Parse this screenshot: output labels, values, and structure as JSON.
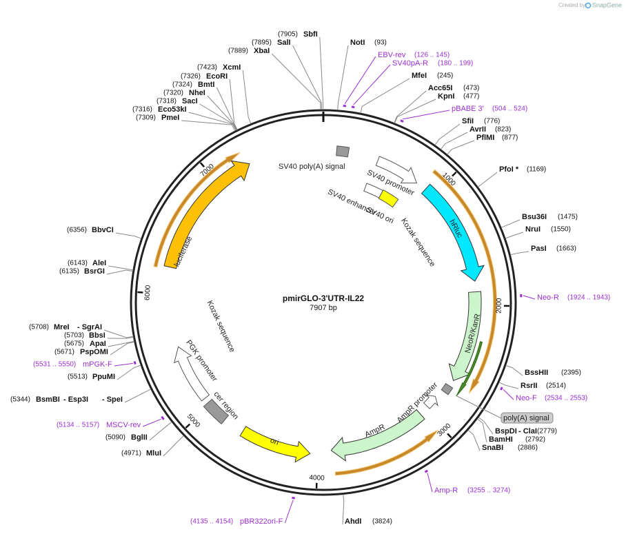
{
  "watermark": {
    "prefix": "Created by",
    "brand": "SnapGene"
  },
  "map": {
    "name": "pmirGLO-3'UTR-IL22",
    "length_label": "7907 bp",
    "length": 7907,
    "ticks": [
      1000,
      2000,
      3000,
      4000,
      5000,
      6000,
      7000
    ]
  },
  "sites": [
    {
      "names": [
        "SbfI"
      ],
      "position": {
        "value": 7905,
        "label": "(7905)"
      }
    },
    {
      "names": [
        "SalI"
      ],
      "position": {
        "value": 7895,
        "label": "(7895)"
      }
    },
    {
      "names": [
        "XbaI"
      ],
      "position": {
        "value": 7889,
        "label": "(7889)"
      }
    },
    {
      "names": [
        "XcmI"
      ],
      "position": {
        "value": 7423,
        "label": "(7423)"
      }
    },
    {
      "names": [
        "EcoRI"
      ],
      "position": {
        "value": 7326,
        "label": "(7326)"
      }
    },
    {
      "names": [
        "BmtI"
      ],
      "position": {
        "value": 7324,
        "label": "(7324)"
      }
    },
    {
      "names": [
        "NheI"
      ],
      "position": {
        "value": 7320,
        "label": "(7320)"
      }
    },
    {
      "names": [
        "SacI"
      ],
      "position": {
        "value": 7318,
        "label": "(7318)"
      }
    },
    {
      "names": [
        "Eco53kI"
      ],
      "position": {
        "value": 7316,
        "label": "(7316)"
      }
    },
    {
      "names": [
        "PmeI"
      ],
      "position": {
        "value": 7309,
        "label": "(7309)"
      }
    },
    {
      "names": [
        "NotI"
      ],
      "position": {
        "value": 93,
        "label": "(93)"
      }
    },
    {
      "names": [
        "MfeI"
      ],
      "position": {
        "value": 245,
        "label": "(245)"
      }
    },
    {
      "names": [
        "Acc65I"
      ],
      "position": {
        "value": 473,
        "label": "(473)"
      }
    },
    {
      "names": [
        "KpnI"
      ],
      "position": {
        "value": 477,
        "label": "(477)"
      }
    },
    {
      "names": [
        "SfiI"
      ],
      "position": {
        "value": 776,
        "label": "(776)"
      }
    },
    {
      "names": [
        "AvrII"
      ],
      "position": {
        "value": 823,
        "label": "(823)"
      }
    },
    {
      "names": [
        "PflMI"
      ],
      "position": {
        "value": 877,
        "label": "(877)"
      }
    },
    {
      "names": [
        "PfoI *"
      ],
      "position": {
        "value": 1169,
        "label": "(1169)"
      }
    },
    {
      "names": [
        "Bsu36I"
      ],
      "position": {
        "value": 1475,
        "label": "(1475)"
      }
    },
    {
      "names": [
        "NruI"
      ],
      "position": {
        "value": 1550,
        "label": "(1550)"
      }
    },
    {
      "names": [
        "PasI"
      ],
      "position": {
        "value": 1663,
        "label": "(1663)"
      }
    },
    {
      "names": [
        "BssHII"
      ],
      "position": {
        "value": 2395,
        "label": "(2395)"
      }
    },
    {
      "names": [
        "RsrII"
      ],
      "position": {
        "value": 2514,
        "label": "(2514)"
      }
    },
    {
      "names": [
        "BspDI",
        "- ClaI"
      ],
      "position": {
        "value": 2779,
        "label": "(2779)"
      }
    },
    {
      "names": [
        "BamHI"
      ],
      "position": {
        "value": 2792,
        "label": "(2792)"
      }
    },
    {
      "names": [
        "SnaBI"
      ],
      "position": {
        "value": 2886,
        "label": "(2886)"
      }
    },
    {
      "names": [
        "AhdI"
      ],
      "position": {
        "value": 3824,
        "label": "(3824)"
      }
    },
    {
      "names": [
        "BbvCI"
      ],
      "position": {
        "value": 6356,
        "label": "(6356)"
      }
    },
    {
      "names": [
        "AleI"
      ],
      "position": {
        "value": 6143,
        "label": "(6143)"
      }
    },
    {
      "names": [
        "BsrGI"
      ],
      "position": {
        "value": 6135,
        "label": "(6135)"
      }
    },
    {
      "names": [
        "MreI",
        "- SgrAI"
      ],
      "position": {
        "value": 5708,
        "label": "(5708)"
      }
    },
    {
      "names": [
        "BbsI"
      ],
      "position": {
        "value": 5703,
        "label": "(5703)"
      }
    },
    {
      "names": [
        "ApaI"
      ],
      "position": {
        "value": 5675,
        "label": "(5675)"
      }
    },
    {
      "names": [
        "PspOMI"
      ],
      "position": {
        "value": 5671,
        "label": "(5671)"
      }
    },
    {
      "names": [
        "PpuMI"
      ],
      "position": {
        "value": 5513,
        "label": "(5513)"
      }
    },
    {
      "names": [
        "BsmBI",
        "- Esp3I",
        "- SpeI"
      ],
      "position": {
        "value": 5344,
        "label": "(5344)"
      }
    },
    {
      "names": [
        "BglII"
      ],
      "position": {
        "value": 5090,
        "label": "(5090)"
      }
    },
    {
      "names": [
        "MluI"
      ],
      "position": {
        "value": 4971,
        "label": "(4971)"
      }
    }
  ],
  "primers": [
    {
      "name": "EBV-rev",
      "start": 126,
      "end": 145,
      "range": "(126 .. 145)"
    },
    {
      "name": "SV40pA-R",
      "start": 180,
      "end": 199,
      "range": "(180 .. 199)"
    },
    {
      "name": "pBABE 3'",
      "start": 504,
      "end": 524,
      "range": "(504 .. 524)"
    },
    {
      "name": "Neo-R",
      "start": 1924,
      "end": 1943,
      "range": "(1924 .. 1943)"
    },
    {
      "name": "Neo-F",
      "start": 2534,
      "end": 2553,
      "range": "(2534 .. 2553)"
    },
    {
      "name": "Amp-R",
      "start": 3255,
      "end": 3274,
      "range": "(3255 .. 3274)"
    },
    {
      "name": "pBR322ori-F",
      "start": 4135,
      "end": 4154,
      "range": "(4135 .. 4154)"
    },
    {
      "name": "MSCV-rev",
      "start": 5134,
      "end": 5157,
      "range": "(5134 .. 5157)"
    },
    {
      "name": "mPGK-F",
      "start": 5531,
      "end": 5550,
      "range": "(5531 .. 5550)"
    }
  ],
  "features": [
    {
      "label": "SV40 poly(A) signal"
    },
    {
      "label": "SV40 promoter"
    },
    {
      "label": "SV40 enhancer"
    },
    {
      "label": "SV40 ori"
    },
    {
      "label": "Kozak sequence"
    },
    {
      "label": "hRluc"
    },
    {
      "label": "NeoR/KanR"
    },
    {
      "label": "poly(A) signal"
    },
    {
      "label": "AmpR promoter"
    },
    {
      "label": "AmpR"
    },
    {
      "label": "ori"
    },
    {
      "label": "cer region"
    },
    {
      "label": "PGK promoter"
    },
    {
      "label": "Kozak sequence"
    },
    {
      "label": "luciferase"
    }
  ]
}
